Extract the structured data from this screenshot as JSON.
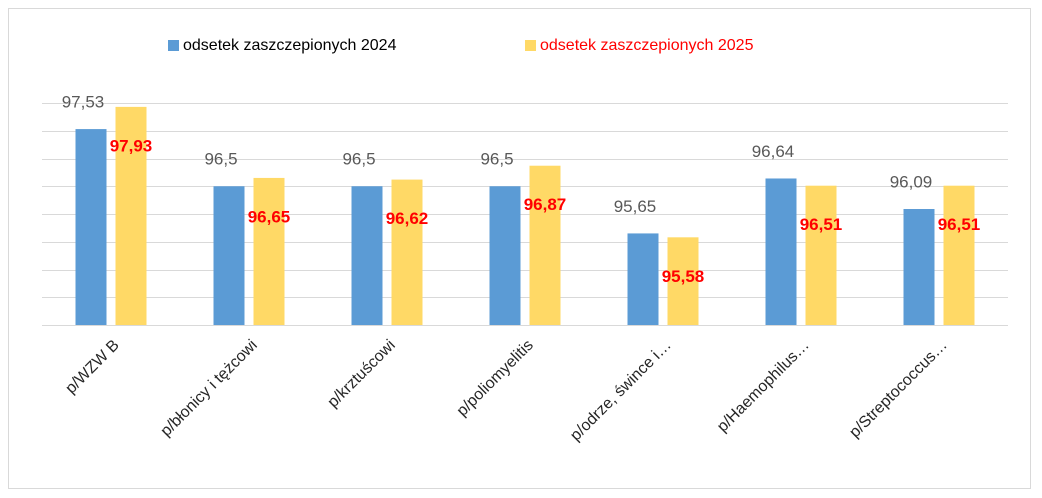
{
  "chart_data": {
    "type": "bar",
    "categories": [
      "p/WZW B",
      "p/błonicy i tężcowi",
      "p/krztuścowi",
      "p/poliomyelitis",
      "p/odrze, śwince i…",
      "p/Haemophilus…",
      "p/Streptococcus…"
    ],
    "series": [
      {
        "name": "odsetek zaszczepionych 2024",
        "color": "#5b9bd5",
        "label_color": "#595959",
        "values": [
          97.53,
          96.5,
          96.5,
          96.5,
          95.65,
          96.64,
          96.09
        ],
        "value_labels": [
          "97,53",
          "96,5",
          "96,5",
          "96,5",
          "95,65",
          "96,64",
          "96,09"
        ]
      },
      {
        "name": "odsetek zaszczepionych 2025",
        "color": "#ffd966",
        "label_color": "#ff0000",
        "values": [
          97.93,
          96.65,
          96.62,
          96.87,
          95.58,
          96.51,
          96.51
        ],
        "value_labels": [
          "97,93",
          "96,65",
          "96,62",
          "96,87",
          "95,58",
          "96,51",
          "96,51"
        ]
      }
    ],
    "ylim": [
      94,
      98
    ],
    "yticks": [
      94,
      94.5,
      95,
      95.5,
      96,
      96.5,
      97,
      97.5,
      98
    ],
    "grid": true,
    "legend": "top"
  }
}
